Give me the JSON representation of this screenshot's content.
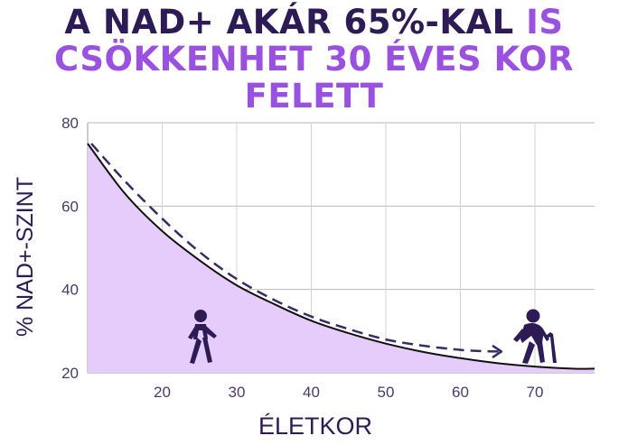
{
  "title": {
    "line1_dark": "A NAD+ AKÁR 65%-KAL",
    "line1_accent": "IS",
    "line2": "CSÖKKENHET 30 ÉVES KOR",
    "line3": "FELETT"
  },
  "colors": {
    "title_dark": "#2d1b55",
    "accent": "#9b51e0",
    "fill": "#e6ccfb",
    "curve": "#111111",
    "dashed": "#3a2a66",
    "icon": "#2d1b55",
    "axis_text": "#4a3a6a"
  },
  "icons": {
    "young": "walking-person-icon",
    "old": "elderly-person-with-cane-icon"
  },
  "chart_data": {
    "type": "area",
    "xlabel": "ÉLETKOR",
    "ylabel": "% NAD+-SZINT",
    "xlim": [
      10,
      78
    ],
    "ylim": [
      20,
      80
    ],
    "xticks": [
      20,
      30,
      40,
      50,
      60,
      70
    ],
    "yticks": [
      20,
      40,
      60,
      80
    ],
    "grid": true,
    "series": [
      {
        "style": "solid-filled",
        "x": [
          10,
          15,
          20,
          25,
          30,
          35,
          40,
          45,
          50,
          55,
          60,
          65,
          70,
          75,
          78
        ],
        "y": [
          75,
          63,
          54,
          47,
          41,
          36.5,
          32.5,
          29.5,
          27,
          25,
          23.5,
          22.3,
          21.5,
          21,
          21
        ]
      },
      {
        "style": "dashed",
        "x": [
          10.5,
          15,
          20,
          25,
          30,
          35,
          40,
          45,
          50,
          55,
          60,
          63,
          65.5
        ],
        "y": [
          75,
          66,
          57,
          49,
          42.5,
          37.5,
          33.5,
          30.5,
          28,
          26.5,
          25.5,
          25.2,
          25.1
        ]
      }
    ]
  }
}
